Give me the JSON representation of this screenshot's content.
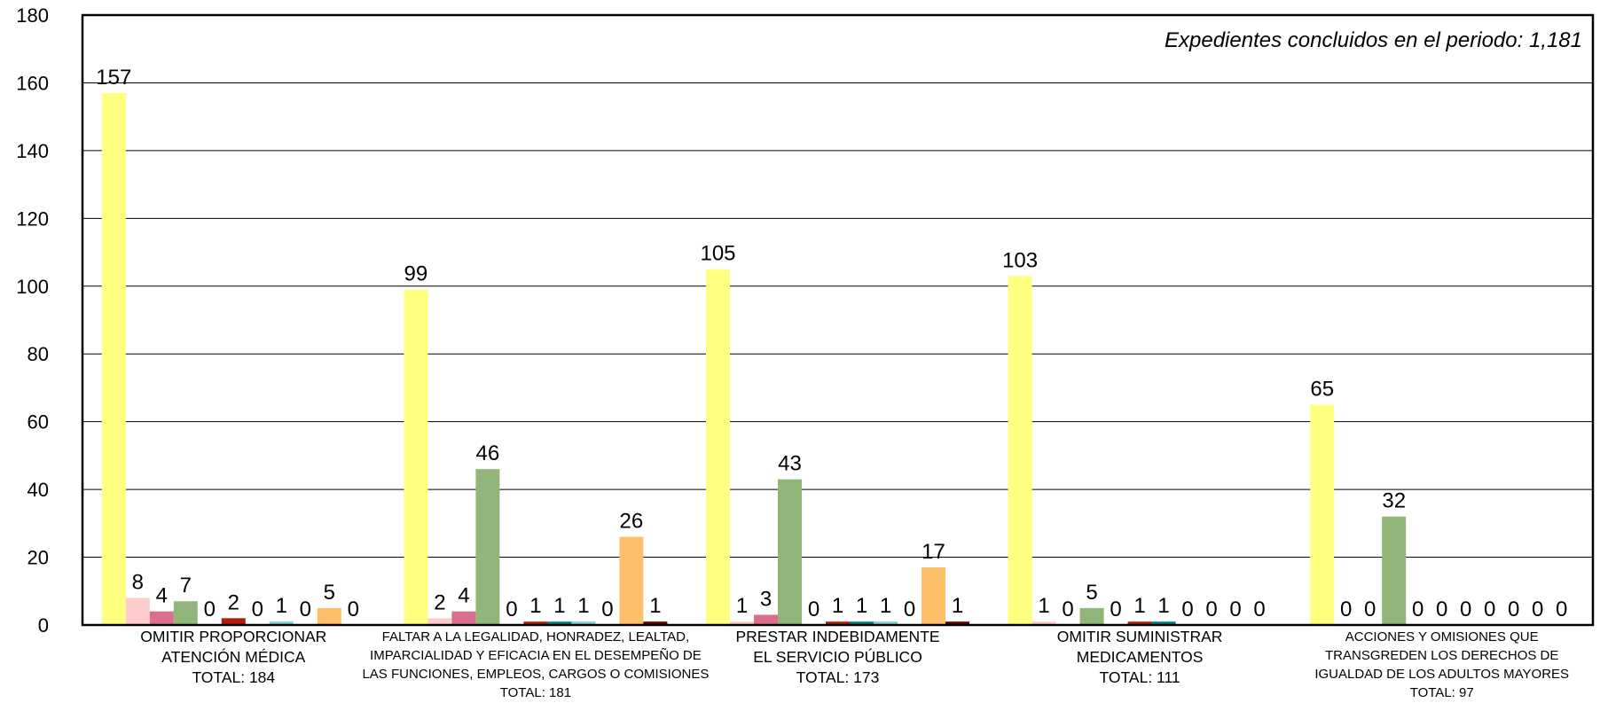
{
  "chart_data": {
    "type": "bar",
    "categories": [
      {
        "lines": [
          "OMITIR PROPORCIONAR",
          "ATENCIÓN MÉDICA",
          "TOTAL:  184"
        ]
      },
      {
        "lines": [
          "FALTAR A LA LEGALIDAD, HONRADEZ, LEALTAD,",
          "IMPARCIALIDAD Y EFICACIA EN EL DESEMPEÑO DE",
          "LAS FUNCIONES, EMPLEOS, CARGOS O COMISIONES",
          "TOTAL:  181"
        ]
      },
      {
        "lines": [
          "PRESTAR INDEBIDAMENTE",
          "EL SERVICIO PÚBLICO",
          "TOTAL:  173"
        ]
      },
      {
        "lines": [
          "OMITIR SUMINISTRAR",
          "MEDICAMENTOS",
          "TOTAL:  111"
        ]
      },
      {
        "lines": [
          "ACCIONES Y OMISIONES QUE",
          "TRANSGREDEN LOS DERECHOS DE",
          "IGUALDAD DE LOS ADULTOS MAYORES",
          "TOTAL:  97"
        ]
      }
    ],
    "series": [
      {
        "color": "#FFFF80",
        "values": [
          157,
          99,
          105,
          103,
          65
        ]
      },
      {
        "color": "#FFCCCC",
        "values": [
          8,
          2,
          1,
          1,
          0
        ]
      },
      {
        "color": "#DB6E8C",
        "values": [
          4,
          4,
          3,
          0,
          0
        ]
      },
      {
        "color": "#92B679",
        "values": [
          7,
          46,
          43,
          5,
          32
        ]
      },
      {
        "color": "#C7DCC0",
        "values": [
          0,
          0,
          0,
          0,
          0
        ]
      },
      {
        "color": "#B31B0B",
        "values": [
          2,
          1,
          1,
          1,
          0
        ]
      },
      {
        "color": "#007F7F",
        "values": [
          0,
          1,
          1,
          1,
          0
        ]
      },
      {
        "color": "#7FD3D3",
        "values": [
          1,
          1,
          1,
          0,
          0
        ]
      },
      {
        "color": "#C7A8DE",
        "values": [
          0,
          0,
          0,
          0,
          0
        ]
      },
      {
        "color": "#FFBF6A",
        "values": [
          5,
          26,
          17,
          0,
          0
        ]
      },
      {
        "color": "#5F0000",
        "values": [
          0,
          1,
          1,
          0,
          0
        ]
      }
    ],
    "ylim": [
      0,
      180
    ],
    "y_ticks": [
      0,
      20,
      40,
      60,
      80,
      100,
      120,
      140,
      160,
      180
    ],
    "grid": "horizontal",
    "annotation": "Expedientes concluidos en el periodo:  1,181"
  }
}
